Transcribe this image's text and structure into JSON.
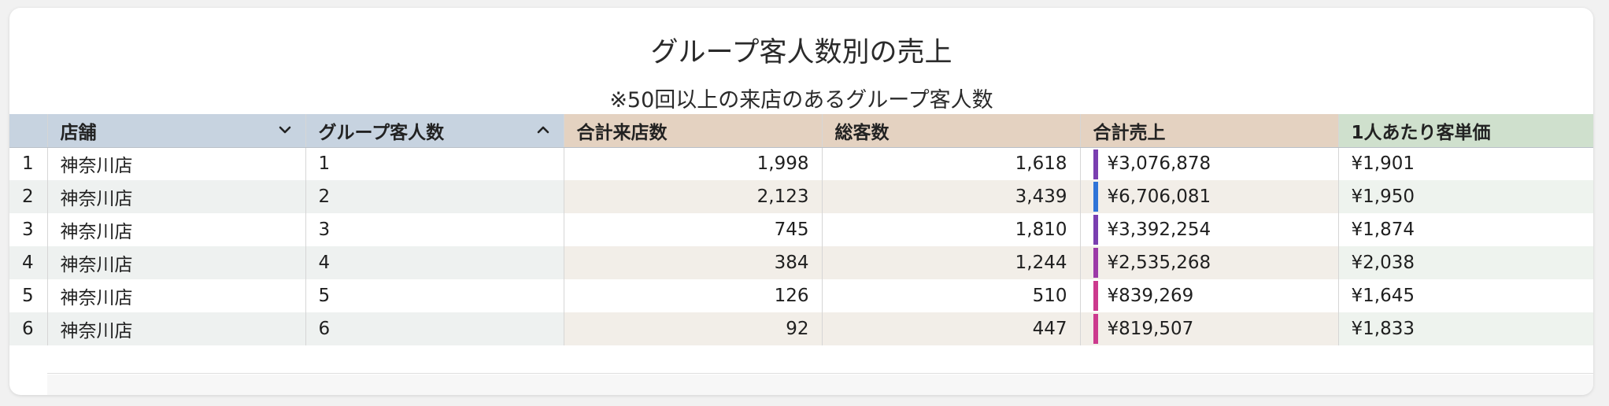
{
  "title": "グループ客人数別の売上",
  "subtitle": "※50回以上の来店のあるグループ客人数",
  "columns": {
    "store": "店舗",
    "group_size": "グループ客人数",
    "visits": "合計来店数",
    "guests": "総客数",
    "sales": "合計売上",
    "unit_price": "1人あたり客単価"
  },
  "icons": {
    "store_sort": "chevron-down-icon",
    "group_sort": "chevron-up-icon"
  },
  "rows": [
    {
      "idx": "1",
      "store": "神奈川店",
      "group_size": "1",
      "visits": "1,998",
      "guests": "1,618",
      "sales": "¥3,076,878",
      "unit_price": "¥1,901",
      "bar_color": "#7a3fb0"
    },
    {
      "idx": "2",
      "store": "神奈川店",
      "group_size": "2",
      "visits": "2,123",
      "guests": "3,439",
      "sales": "¥6,706,081",
      "unit_price": "¥1,950",
      "bar_color": "#2f74d8"
    },
    {
      "idx": "3",
      "store": "神奈川店",
      "group_size": "3",
      "visits": "745",
      "guests": "1,810",
      "sales": "¥3,392,254",
      "unit_price": "¥1,874",
      "bar_color": "#7a3fb0"
    },
    {
      "idx": "4",
      "store": "神奈川店",
      "group_size": "4",
      "visits": "384",
      "guests": "1,244",
      "sales": "¥2,535,268",
      "unit_price": "¥2,038",
      "bar_color": "#9c3aa8"
    },
    {
      "idx": "5",
      "store": "神奈川店",
      "group_size": "5",
      "visits": "126",
      "guests": "510",
      "sales": "¥839,269",
      "unit_price": "¥1,645",
      "bar_color": "#cc3a8e"
    },
    {
      "idx": "6",
      "store": "神奈川店",
      "group_size": "6",
      "visits": "92",
      "guests": "447",
      "sales": "¥819,507",
      "unit_price": "¥1,833",
      "bar_color": "#cc3a8e"
    }
  ]
}
